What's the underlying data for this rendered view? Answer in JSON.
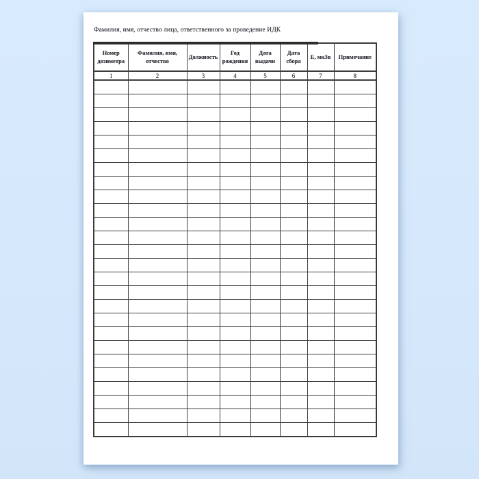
{
  "document": {
    "title": "Фамилия, имя, отчество лица, ответственного за проведение ИДК",
    "table": {
      "columns": [
        {
          "label": "Номер дозиметра",
          "number": "1"
        },
        {
          "label": "Фамилия, имя, отчество",
          "number": "2"
        },
        {
          "label": "Должность",
          "number": "3"
        },
        {
          "label": "Год рождения",
          "number": "4"
        },
        {
          "label": "Дата выдачи",
          "number": "5"
        },
        {
          "label": "Дата сбора",
          "number": "6"
        },
        {
          "label": "Е, мкЗв",
          "number": "7"
        },
        {
          "label": "Примечание",
          "number": "8"
        }
      ],
      "empty_row_count": 26,
      "empty_cell_value": ""
    }
  },
  "colors": {
    "desktop_background": "#d6eafc",
    "page_background": "#ffffff",
    "grid_line": "#3d3d40",
    "thick_border": "#2c2c2e",
    "text": "#26262e"
  }
}
